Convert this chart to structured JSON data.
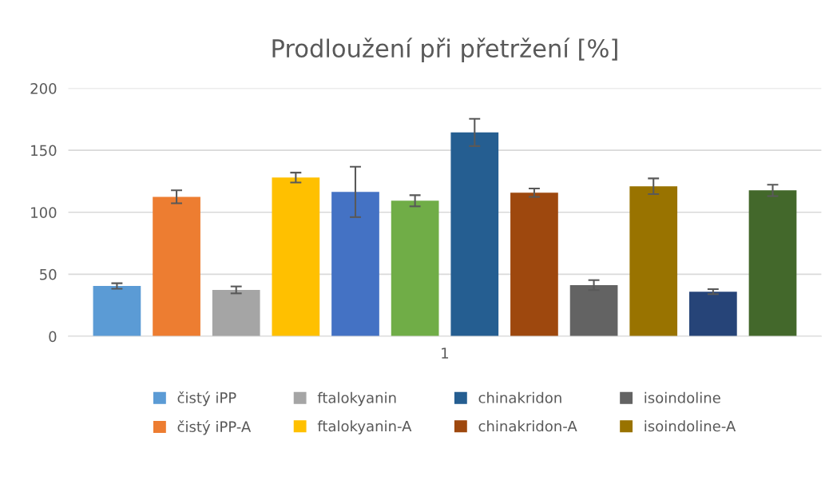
{
  "chart_data": {
    "type": "bar",
    "title": "Prodloužení při přetržení [%]",
    "categories": [
      "1"
    ],
    "series": [
      {
        "name": "čistý iPP",
        "color": "#5b9bd5",
        "values": [
          40.6
        ],
        "errors": [
          2.2
        ]
      },
      {
        "name": "čistý iPP-A",
        "color": "#ed7d31",
        "values": [
          112.5
        ],
        "errors": [
          5.2
        ]
      },
      {
        "name": "ftalokyanin",
        "color": "#a5a5a5",
        "values": [
          37.4
        ],
        "errors": [
          2.8
        ]
      },
      {
        "name": "ftalokyanin-A",
        "color": "#ffc000",
        "values": [
          128
        ],
        "errors": [
          4
        ]
      },
      {
        "color": "#4472c4",
        "values": [
          116.4
        ],
        "errors": [
          20.3
        ]
      },
      {
        "color": "#70ad47",
        "values": [
          109.3
        ],
        "errors": [
          4.5
        ]
      },
      {
        "name": "chinakridon",
        "color": "#255e91",
        "values": [
          164.4
        ],
        "errors": [
          11
        ]
      },
      {
        "name": "chinakridon-A",
        "color": "#9e480e",
        "values": [
          115.8
        ],
        "errors": [
          3.4
        ]
      },
      {
        "name": "isoindoline",
        "color": "#636363",
        "values": [
          41.3
        ],
        "errors": [
          4
        ]
      },
      {
        "name": "isoindoline-A",
        "color": "#997300",
        "values": [
          121
        ],
        "errors": [
          6.3
        ]
      },
      {
        "color": "#264478",
        "values": [
          36
        ],
        "errors": [
          2
        ]
      },
      {
        "color": "#43682b",
        "values": [
          117.7
        ],
        "errors": [
          4.6
        ]
      }
    ],
    "ylim": [
      0,
      200
    ],
    "yticks": [
      0,
      50,
      100,
      150,
      200
    ],
    "grid": "y",
    "legend": "bottom"
  }
}
